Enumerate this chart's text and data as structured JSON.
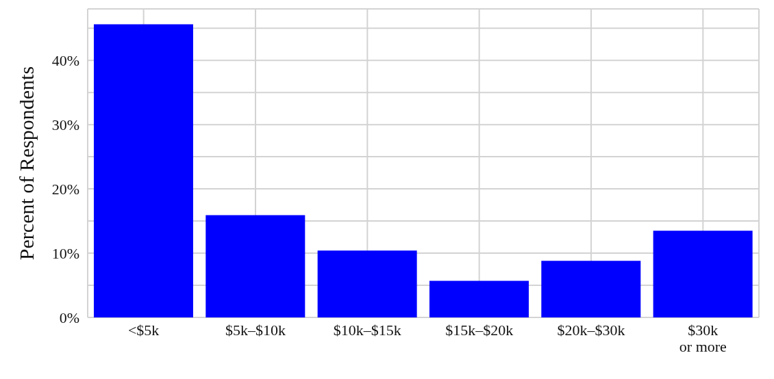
{
  "chart_data": {
    "type": "bar",
    "ylabel": "Percent of Respondents",
    "categories": [
      "<$5k",
      "$5k–$10k",
      "$10k–$15k",
      "$15k–$20k",
      "$20k–$30k",
      "$30k\nor more"
    ],
    "values": [
      45.6,
      15.9,
      10.4,
      5.7,
      8.8,
      13.5
    ],
    "color": "#0000ff",
    "ylim": [
      0,
      48
    ],
    "yticks": [
      {
        "value": 0,
        "label": "0%"
      },
      {
        "value": 5,
        "label": null
      },
      {
        "value": 10,
        "label": "10%"
      },
      {
        "value": 15,
        "label": null
      },
      {
        "value": 20,
        "label": "20%"
      },
      {
        "value": 25,
        "label": null
      },
      {
        "value": 30,
        "label": "30%"
      },
      {
        "value": 35,
        "label": null
      },
      {
        "value": 40,
        "label": "40%"
      },
      {
        "value": 45,
        "label": null
      }
    ],
    "grid": true
  }
}
